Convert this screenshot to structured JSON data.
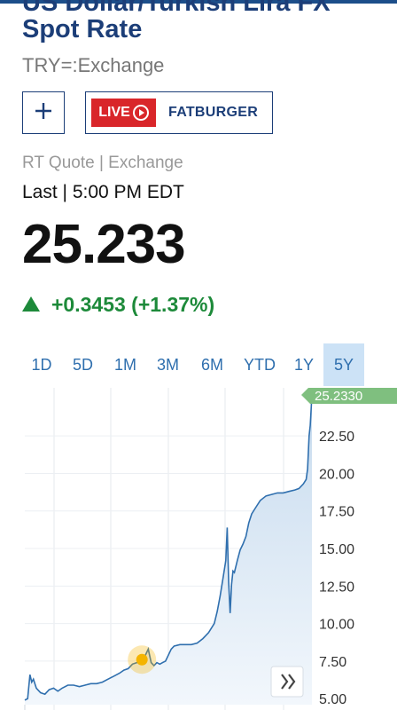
{
  "header": {
    "title": "US Dollar/Turkish Lira FX Spot Rate",
    "symbol": "TRY=:Exchange"
  },
  "actions": {
    "add_label": "+",
    "live_badge": "LIVE",
    "live_show": "FATBURGER"
  },
  "quote": {
    "type": "RT Quote | Exchange",
    "last_label": "Last | 5:00 PM EDT",
    "price": "25.233",
    "change": "+0.3453 (+1.37%)"
  },
  "ranges": [
    {
      "label": "1D",
      "active": false
    },
    {
      "label": "5D",
      "active": false
    },
    {
      "label": "1M",
      "active": false
    },
    {
      "label": "3M",
      "active": false
    },
    {
      "label": "6M",
      "active": false
    },
    {
      "label": "YTD",
      "active": false
    },
    {
      "label": "1Y",
      "active": false
    },
    {
      "label": "5Y",
      "active": true
    }
  ],
  "chart_data": {
    "type": "area",
    "range": "5Y",
    "current_value_label": "25.2330",
    "y_ticks": [
      "5.00",
      "7.50",
      "10.00",
      "12.50",
      "15.00",
      "17.50",
      "20.00",
      "22.50"
    ],
    "ylim": [
      4.6,
      25.7
    ],
    "grid": true,
    "colors": {
      "line": "#2f6fae",
      "fill_top": "#c7dbee",
      "fill_bottom": "#f2f7fc",
      "current_tag": "#7fbf7f",
      "marker": "#f4b400"
    },
    "highlight_point": {
      "x": 0.408,
      "y": 7.6
    },
    "series": [
      {
        "values": [
          [
            0.0,
            4.9
          ],
          [
            0.01,
            5.0
          ],
          [
            0.018,
            6.6
          ],
          [
            0.024,
            6.1
          ],
          [
            0.03,
            6.3
          ],
          [
            0.04,
            5.7
          ],
          [
            0.055,
            5.4
          ],
          [
            0.07,
            5.3
          ],
          [
            0.085,
            5.6
          ],
          [
            0.1,
            5.7
          ],
          [
            0.115,
            5.5
          ],
          [
            0.13,
            5.7
          ],
          [
            0.15,
            5.9
          ],
          [
            0.17,
            5.9
          ],
          [
            0.19,
            5.8
          ],
          [
            0.21,
            5.9
          ],
          [
            0.23,
            6.0
          ],
          [
            0.25,
            6.0
          ],
          [
            0.27,
            6.1
          ],
          [
            0.29,
            6.3
          ],
          [
            0.31,
            6.5
          ],
          [
            0.33,
            6.7
          ],
          [
            0.345,
            6.9
          ],
          [
            0.36,
            7.0
          ],
          [
            0.375,
            7.3
          ],
          [
            0.39,
            7.4
          ],
          [
            0.4,
            7.5
          ],
          [
            0.408,
            7.6
          ],
          [
            0.42,
            7.9
          ],
          [
            0.43,
            8.3
          ],
          [
            0.44,
            7.4
          ],
          [
            0.45,
            7.2
          ],
          [
            0.46,
            7.4
          ],
          [
            0.47,
            7.3
          ],
          [
            0.48,
            7.4
          ],
          [
            0.49,
            7.5
          ],
          [
            0.5,
            7.9
          ],
          [
            0.51,
            8.3
          ],
          [
            0.52,
            8.5
          ],
          [
            0.54,
            8.6
          ],
          [
            0.56,
            8.6
          ],
          [
            0.58,
            8.6
          ],
          [
            0.6,
            8.7
          ],
          [
            0.62,
            9.0
          ],
          [
            0.64,
            9.4
          ],
          [
            0.66,
            10.0
          ],
          [
            0.67,
            10.8
          ],
          [
            0.68,
            11.8
          ],
          [
            0.69,
            13.0
          ],
          [
            0.7,
            14.2
          ],
          [
            0.705,
            16.4
          ],
          [
            0.71,
            12.8
          ],
          [
            0.715,
            10.7
          ],
          [
            0.72,
            12.6
          ],
          [
            0.725,
            13.5
          ],
          [
            0.73,
            13.4
          ],
          [
            0.74,
            14.2
          ],
          [
            0.75,
            14.9
          ],
          [
            0.76,
            15.3
          ],
          [
            0.77,
            15.8
          ],
          [
            0.78,
            16.7
          ],
          [
            0.79,
            17.3
          ],
          [
            0.8,
            17.6
          ],
          [
            0.81,
            17.9
          ],
          [
            0.82,
            18.2
          ],
          [
            0.84,
            18.5
          ],
          [
            0.86,
            18.6
          ],
          [
            0.88,
            18.7
          ],
          [
            0.9,
            18.7
          ],
          [
            0.92,
            18.8
          ],
          [
            0.94,
            18.9
          ],
          [
            0.955,
            19.0
          ],
          [
            0.97,
            19.3
          ],
          [
            0.98,
            19.6
          ],
          [
            0.985,
            20.3
          ],
          [
            0.99,
            22.5
          ],
          [
            0.994,
            23.2
          ],
          [
            1.0,
            25.23
          ]
        ]
      }
    ]
  }
}
